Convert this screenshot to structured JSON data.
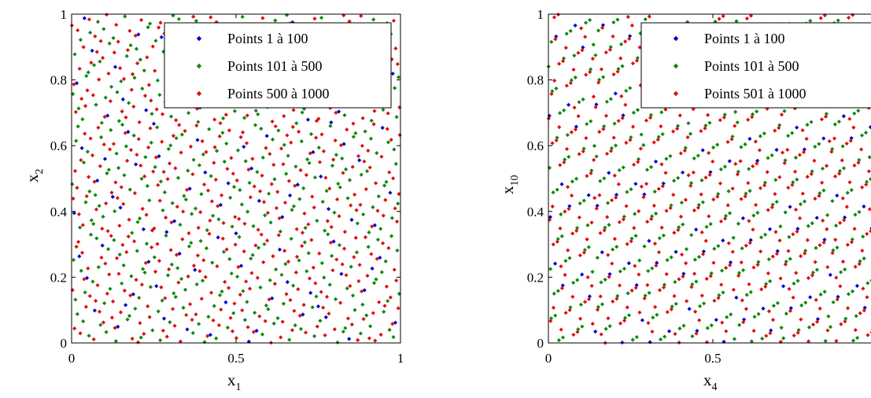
{
  "chart_data": [
    {
      "type": "scatter",
      "xlabel": "x",
      "xlabel_sub": "1",
      "ylabel": "x",
      "ylabel_sub": "2",
      "xlim": [
        0,
        1
      ],
      "ylim": [
        0,
        1
      ],
      "xticks": [
        0,
        0.5,
        1
      ],
      "xtick_labels": [
        "0",
        "0.5",
        "1"
      ],
      "yticks": [
        0,
        0.2,
        0.4,
        0.6,
        0.8,
        1
      ],
      "ytick_labels": [
        "0",
        "0.2",
        "0.4",
        "0.6",
        "0.8",
        "1"
      ],
      "grid": false,
      "legend_position": "top-right",
      "pattern": {
        "dims": [
          1,
          2
        ]
      },
      "series": [
        {
          "name": "Points 1 à 100",
          "start": 1,
          "end": 100,
          "color": "#0000cc"
        },
        {
          "name": "Points 101 à 500",
          "start": 101,
          "end": 500,
          "color": "#118811"
        },
        {
          "name": "Points 500 à 1000",
          "start": 500,
          "end": 1000,
          "color": "#dd1111"
        }
      ]
    },
    {
      "type": "scatter",
      "xlabel": "x",
      "xlabel_sub": "4",
      "ylabel": "x",
      "ylabel_sub": "10",
      "xlim": [
        0,
        1
      ],
      "ylim": [
        0,
        1
      ],
      "xticks": [
        0,
        0.5,
        1
      ],
      "xtick_labels": [
        "0",
        "0.5",
        ""
      ],
      "yticks": [
        0,
        0.2,
        0.4,
        0.6,
        0.8,
        1
      ],
      "ytick_labels": [
        "0",
        "0.2",
        "0.4",
        "0.6",
        "0.8",
        "1"
      ],
      "grid": false,
      "legend_position": "top-right",
      "pattern": {
        "dims": [
          4,
          10
        ]
      },
      "series": [
        {
          "name": "Points 1 à 100",
          "start": 1,
          "end": 100,
          "color": "#0000cc"
        },
        {
          "name": "Points 101 à 500",
          "start": 101,
          "end": 500,
          "color": "#118811"
        },
        {
          "name": "Points 501 à 1000",
          "start": 501,
          "end": 1000,
          "color": "#dd1111"
        }
      ]
    }
  ]
}
